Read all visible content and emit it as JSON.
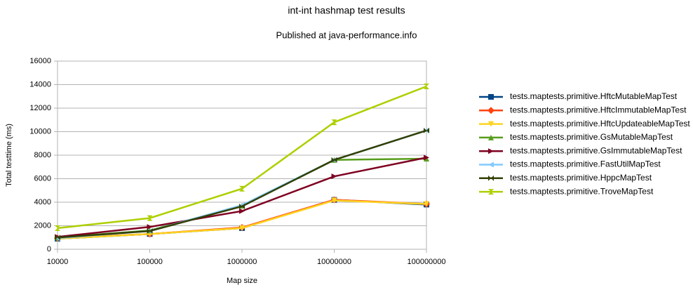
{
  "chart_data": {
    "type": "line",
    "title": "int-int hashmap test results",
    "subtitle": "Published at java-performance.info",
    "x_label": "Map size",
    "y_label": "Total testtime (ms)",
    "x": [
      10000,
      100000,
      1000000,
      10000000,
      100000000
    ],
    "xscale": "log",
    "xlim": [
      10000,
      100000000
    ],
    "xticks": [
      10000,
      100000,
      1000000,
      10000000,
      100000000
    ],
    "ylim": [
      0,
      16000
    ],
    "yticks": [
      0,
      2000,
      4000,
      6000,
      8000,
      10000,
      12000,
      14000,
      16000
    ],
    "grid": true,
    "legend": "right",
    "series": [
      {
        "name": "tests.maptests.primitive.HftcMutableMapTest",
        "color": "#004586",
        "marker": "square",
        "values": [
          900,
          1300,
          1800,
          4200,
          3800
        ]
      },
      {
        "name": "tests.maptests.primitive.HftcImmutableMapTest",
        "color": "#ff420e",
        "marker": "diamond",
        "values": [
          950,
          1300,
          1850,
          4200,
          3850
        ]
      },
      {
        "name": "tests.maptests.primitive.HftcUpdateableMapTest",
        "color": "#ffd320",
        "marker": "triangle-down",
        "values": [
          900,
          1300,
          1800,
          4150,
          3850
        ]
      },
      {
        "name": "tests.maptests.primitive.GsMutableMapTest",
        "color": "#579d1c",
        "marker": "triangle-up",
        "values": [
          1000,
          1600,
          3700,
          7600,
          7700
        ]
      },
      {
        "name": "tests.maptests.primitive.GsImmutableMapTest",
        "color": "#7e0021",
        "marker": "triangle-right",
        "values": [
          1050,
          1900,
          3250,
          6200,
          7800
        ]
      },
      {
        "name": "tests.maptests.primitive.FastUtilMapTest",
        "color": "#83caff",
        "marker": "triangle-left",
        "values": [
          950,
          1550,
          3750,
          7600,
          10100
        ]
      },
      {
        "name": "tests.maptests.primitive.HppcMapTest",
        "color": "#314004",
        "marker": "bowtie",
        "values": [
          1000,
          1550,
          3650,
          7600,
          10100
        ]
      },
      {
        "name": "tests.maptests.primitive.TroveMapTest",
        "color": "#aecf00",
        "marker": "hourglass",
        "values": [
          1800,
          2650,
          5150,
          10800,
          13850
        ]
      }
    ]
  }
}
